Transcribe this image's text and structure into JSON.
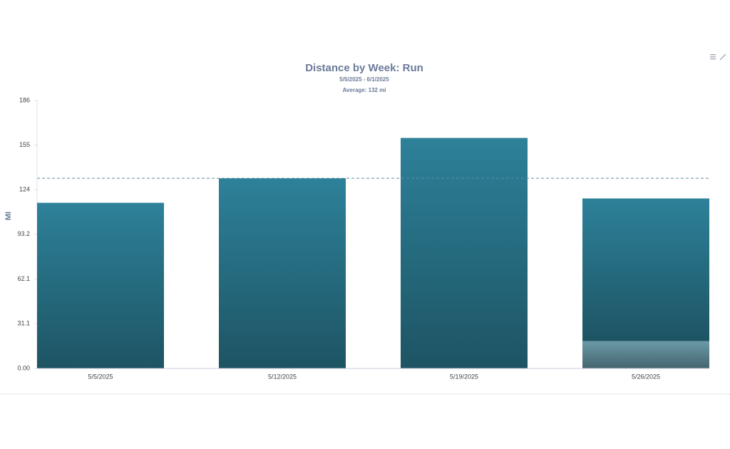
{
  "chart_data": {
    "type": "bar",
    "stacked": true,
    "title": "Distance by Week: Run",
    "subtitle": "5/5/2025 - 6/1/2025",
    "average_label": "Average: 132 mi",
    "average": 132,
    "ylabel": "MI",
    "categories": [
      "5/5/2025",
      "5/12/2025",
      "5/19/2025",
      "5/26/2025"
    ],
    "series": [
      {
        "color": "#6a9aa8",
        "values": [
          null,
          null,
          null,
          19
        ]
      },
      {
        "color": "#2d8199",
        "values": [
          115,
          132,
          160,
          99
        ]
      }
    ],
    "ylim": [
      0,
      186
    ],
    "yticks": [
      {
        "value": 0,
        "label": "0.00"
      },
      31.1,
      62.1,
      93.2,
      124,
      155,
      186
    ],
    "grid": false
  }
}
